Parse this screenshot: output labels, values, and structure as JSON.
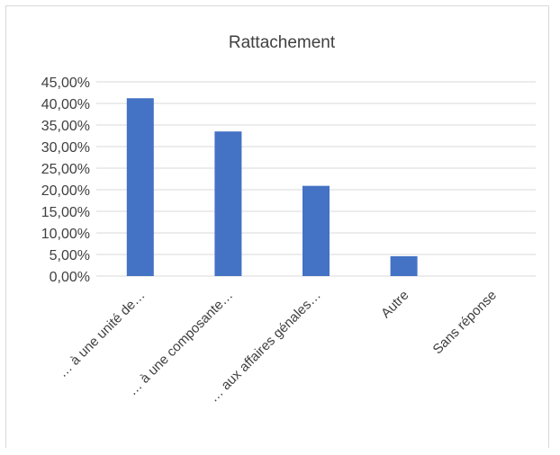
{
  "chart_data": {
    "type": "bar",
    "title": "Rattachement",
    "xlabel": "",
    "ylabel": "",
    "categories": [
      "… à une unité de…",
      "… à une composante…",
      "… aux affaires génales…",
      "Autre",
      "Sans réponse"
    ],
    "values": [
      41.2,
      33.5,
      20.9,
      4.6,
      0
    ],
    "ylim": [
      0,
      45
    ],
    "yticks": [
      "0,00%",
      "5,00%",
      "10,00%",
      "15,00%",
      "20,00%",
      "25,00%",
      "30,00%",
      "35,00%",
      "40,00%",
      "45,00%"
    ],
    "ytick_values": [
      0,
      5,
      10,
      15,
      20,
      25,
      30,
      35,
      40,
      45
    ],
    "grid": true,
    "legend": "none",
    "bar_color": "#4472c4",
    "grid_color": "#d9d9d9"
  }
}
